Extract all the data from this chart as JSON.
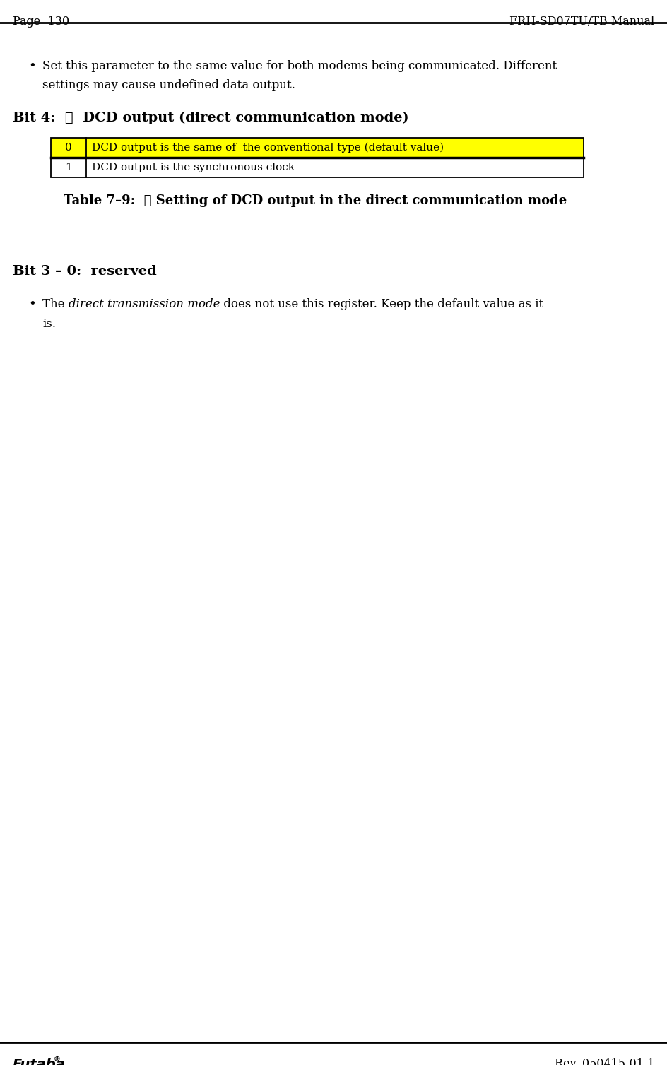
{
  "page_left": "Page  130",
  "page_right": "FRH-SD07TU/TB Manual",
  "footer_left": "Futaba",
  "footer_right": "Rev. 050415-01.1",
  "bullet1_line1": "Set this parameter to the same value for both modems being communicated. Different",
  "bullet1_line2": "settings may cause undefined data output.",
  "bit4_heading_pre": "Bit 4:  ：  DCD output (direct communication mode)",
  "table_row0_val": "0",
  "table_row0_desc": "DCD output is the same of  the conventional type (default value)",
  "table_row0_bg": "#FFFF00",
  "table_row1_val": "1",
  "table_row1_desc": "DCD output is the synchronous clock",
  "table_row1_bg": "#FFFFFF",
  "table_caption": "Table 7–9:  ： Setting of DCD output in the direct communication mode",
  "bit30_heading": "Bit 3 – 0:  reserved",
  "bullet2_prefix": "The ",
  "bullet2_italic": "direct transmission mode",
  "bullet2_suffix": " does not use this register. Keep the default value as it",
  "bullet2_line2": "is.",
  "bg_color": "#FFFFFF",
  "text_color": "#000000"
}
